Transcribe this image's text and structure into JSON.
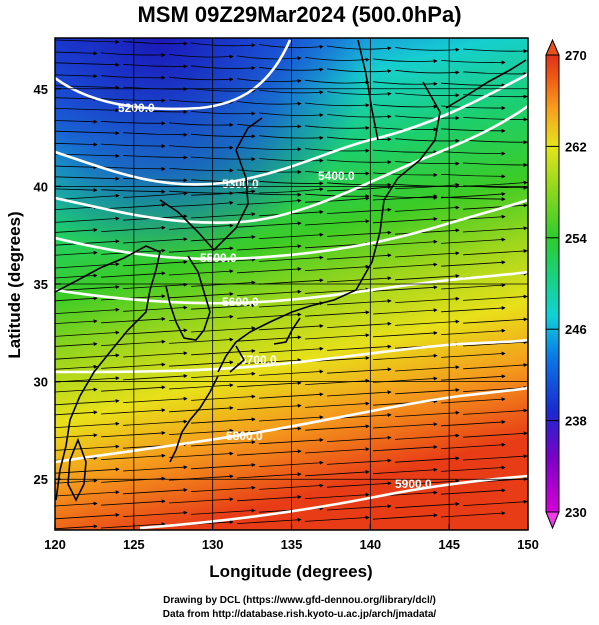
{
  "title": "MSM 09Z29Mar2024 (500.0hPa)",
  "x_axis": {
    "label": "Longitude (degrees)",
    "range": [
      120,
      150
    ],
    "ticks": [
      "120",
      "125",
      "130",
      "135",
      "140",
      "145",
      "150"
    ]
  },
  "y_axis": {
    "label": "Latitude  (degrees)",
    "range": [
      22.4,
      47.6
    ],
    "ticks": [
      "25",
      "30",
      "35",
      "40",
      "45"
    ]
  },
  "colorbar": {
    "range": [
      230,
      270
    ],
    "ticks": [
      "230",
      "238",
      "246",
      "254",
      "262",
      "270"
    ],
    "colors": [
      "#d600d6",
      "#7a00c8",
      "#1a2ad0",
      "#0a7ae8",
      "#10d2d6",
      "#18d27a",
      "#2ecc2e",
      "#8ad81a",
      "#e6e41a",
      "#f6a21c",
      "#f05a14",
      "#e0301a"
    ]
  },
  "contours": [
    {
      "label": "5200.0",
      "value": 5200
    },
    {
      "label": "5300.0",
      "value": 5300
    },
    {
      "label": "5400.0",
      "value": 5400
    },
    {
      "label": "5500.0",
      "value": 5500
    },
    {
      "label": "5600.0",
      "value": 5600
    },
    {
      "label": "5700.0",
      "value": 5700
    },
    {
      "label": "5800.0",
      "value": 5800
    },
    {
      "label": "5900.0",
      "value": 5900
    }
  ],
  "credits": {
    "line1": "Drawing by DCL (https://www.gfd-dennou.org/library/dcl/)",
    "line2": "Data from http://database.rish.kyoto-u.ac.jp/arch/jmadata/"
  }
}
